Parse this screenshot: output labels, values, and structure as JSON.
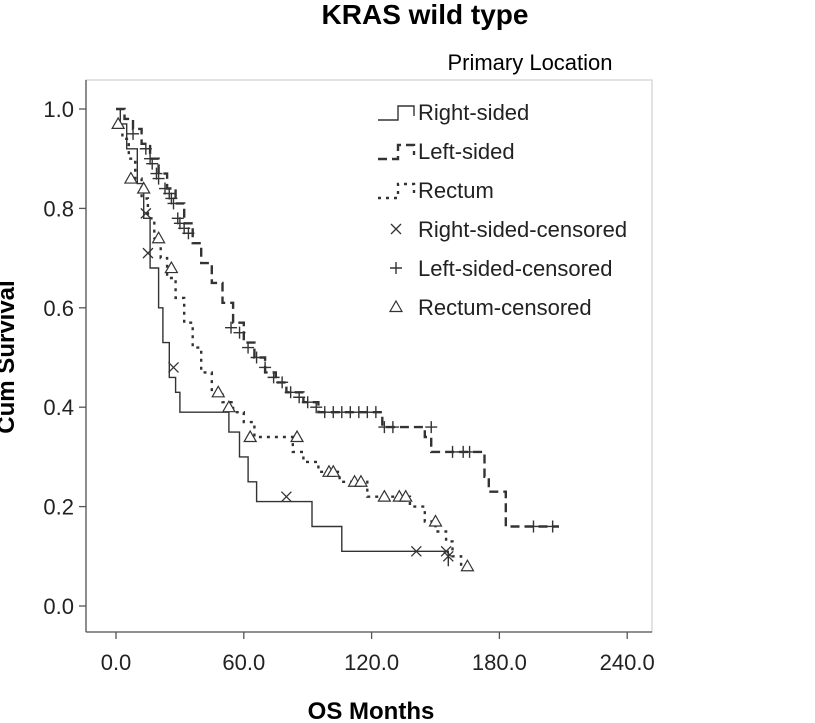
{
  "chart_data": {
    "type": "line",
    "title": "KRAS wild type",
    "xlabel": "OS Months",
    "ylabel": "Cum Survival",
    "xlim": [
      0,
      240
    ],
    "ylim": [
      0,
      1
    ],
    "x_ticks": [
      "0.0",
      "60.0",
      "120.0",
      "180.0",
      "240.0"
    ],
    "y_ticks": [
      "0.0",
      "0.2",
      "0.4",
      "0.6",
      "0.8",
      "1.0"
    ],
    "grid": false,
    "legend": {
      "title": "Primary Location",
      "position": "top-right",
      "entries": [
        "Right-sided",
        "Left-sided",
        "Rectum",
        "Right-sided-censored",
        "Left-sided-censored",
        "Rectum-censored"
      ]
    },
    "series": [
      {
        "name": "Right-sided",
        "style": "solid",
        "steps": [
          [
            0,
            1.0
          ],
          [
            2,
            0.97
          ],
          [
            5,
            0.92
          ],
          [
            10,
            0.85
          ],
          [
            13,
            0.78
          ],
          [
            16,
            0.68
          ],
          [
            20,
            0.6
          ],
          [
            22,
            0.53
          ],
          [
            25,
            0.46
          ],
          [
            28,
            0.43
          ],
          [
            30,
            0.39
          ],
          [
            53,
            0.35
          ],
          [
            58,
            0.3
          ],
          [
            62,
            0.25
          ],
          [
            66,
            0.21
          ],
          [
            92,
            0.16
          ],
          [
            106,
            0.11
          ],
          [
            156,
            0.08
          ]
        ],
        "censored_marker": "x",
        "censored": [
          [
            14,
            0.79
          ],
          [
            15,
            0.71
          ],
          [
            27,
            0.48
          ],
          [
            80,
            0.22
          ],
          [
            141,
            0.11
          ],
          [
            155,
            0.11
          ],
          [
            156,
            0.1
          ]
        ]
      },
      {
        "name": "Left-sided",
        "style": "dash",
        "steps": [
          [
            0,
            1.0
          ],
          [
            4,
            0.98
          ],
          [
            8,
            0.96
          ],
          [
            12,
            0.93
          ],
          [
            16,
            0.9
          ],
          [
            20,
            0.87
          ],
          [
            24,
            0.84
          ],
          [
            28,
            0.81
          ],
          [
            32,
            0.77
          ],
          [
            36,
            0.73
          ],
          [
            40,
            0.69
          ],
          [
            45,
            0.65
          ],
          [
            50,
            0.61
          ],
          [
            55,
            0.57
          ],
          [
            60,
            0.53
          ],
          [
            65,
            0.5
          ],
          [
            70,
            0.47
          ],
          [
            75,
            0.45
          ],
          [
            80,
            0.43
          ],
          [
            88,
            0.41
          ],
          [
            95,
            0.39
          ],
          [
            125,
            0.36
          ],
          [
            145,
            0.34
          ],
          [
            148,
            0.31
          ],
          [
            173,
            0.28
          ],
          [
            173,
            0.26
          ],
          [
            175,
            0.23
          ],
          [
            183,
            0.2
          ],
          [
            183,
            0.16
          ],
          [
            208,
            0.16
          ]
        ],
        "censored_marker": "plus",
        "censored": [
          [
            8,
            0.95
          ],
          [
            14,
            0.92
          ],
          [
            16,
            0.9
          ],
          [
            17,
            0.89
          ],
          [
            19,
            0.87
          ],
          [
            20,
            0.86
          ],
          [
            23,
            0.84
          ],
          [
            25,
            0.83
          ],
          [
            26,
            0.82
          ],
          [
            27,
            0.81
          ],
          [
            29,
            0.78
          ],
          [
            30,
            0.77
          ],
          [
            32,
            0.76
          ],
          [
            34,
            0.75
          ],
          [
            54,
            0.56
          ],
          [
            58,
            0.55
          ],
          [
            62,
            0.52
          ],
          [
            66,
            0.5
          ],
          [
            70,
            0.48
          ],
          [
            74,
            0.46
          ],
          [
            78,
            0.45
          ],
          [
            82,
            0.43
          ],
          [
            86,
            0.42
          ],
          [
            90,
            0.41
          ],
          [
            94,
            0.4
          ],
          [
            98,
            0.39
          ],
          [
            102,
            0.39
          ],
          [
            106,
            0.39
          ],
          [
            110,
            0.39
          ],
          [
            114,
            0.39
          ],
          [
            118,
            0.39
          ],
          [
            122,
            0.39
          ],
          [
            126,
            0.36
          ],
          [
            130,
            0.36
          ],
          [
            148,
            0.36
          ],
          [
            158,
            0.31
          ],
          [
            163,
            0.31
          ],
          [
            166,
            0.31
          ],
          [
            196,
            0.16
          ],
          [
            205,
            0.16
          ]
        ]
      },
      {
        "name": "Rectum",
        "style": "dot",
        "steps": [
          [
            0,
            0.97
          ],
          [
            3,
            0.94
          ],
          [
            6,
            0.9
          ],
          [
            9,
            0.86
          ],
          [
            12,
            0.82
          ],
          [
            15,
            0.78
          ],
          [
            18,
            0.74
          ],
          [
            21,
            0.7
          ],
          [
            24,
            0.66
          ],
          [
            28,
            0.62
          ],
          [
            32,
            0.57
          ],
          [
            36,
            0.52
          ],
          [
            40,
            0.47
          ],
          [
            45,
            0.43
          ],
          [
            50,
            0.41
          ],
          [
            55,
            0.39
          ],
          [
            60,
            0.37
          ],
          [
            65,
            0.34
          ],
          [
            75,
            0.34
          ],
          [
            83,
            0.31
          ],
          [
            88,
            0.29
          ],
          [
            95,
            0.27
          ],
          [
            105,
            0.25
          ],
          [
            118,
            0.22
          ],
          [
            138,
            0.2
          ],
          [
            145,
            0.17
          ],
          [
            150,
            0.15
          ],
          [
            155,
            0.13
          ],
          [
            158,
            0.1
          ],
          [
            162,
            0.08
          ],
          [
            166,
            0.08
          ]
        ],
        "censored_marker": "triangle",
        "censored": [
          [
            1,
            0.97
          ],
          [
            7,
            0.86
          ],
          [
            13,
            0.84
          ],
          [
            20,
            0.74
          ],
          [
            26,
            0.68
          ],
          [
            48,
            0.43
          ],
          [
            53,
            0.4
          ],
          [
            63,
            0.34
          ],
          [
            85,
            0.34
          ],
          [
            100,
            0.27
          ],
          [
            102,
            0.27
          ],
          [
            112,
            0.25
          ],
          [
            115,
            0.25
          ],
          [
            126,
            0.22
          ],
          [
            133,
            0.22
          ],
          [
            136,
            0.22
          ],
          [
            150,
            0.17
          ],
          [
            165,
            0.08
          ]
        ]
      }
    ]
  }
}
